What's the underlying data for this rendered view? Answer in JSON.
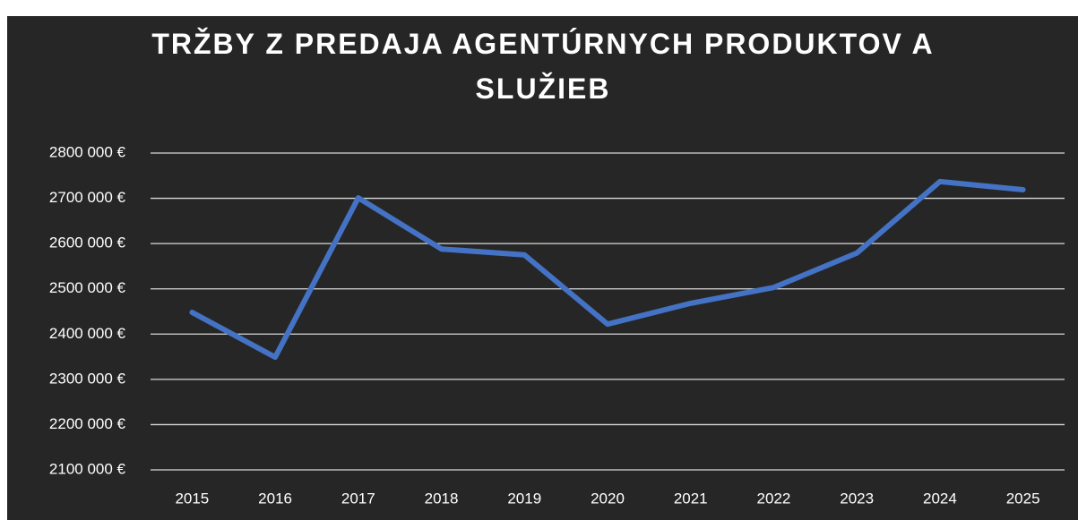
{
  "chart_data": {
    "type": "line",
    "title": "TRŽBY Z PREDAJA AGENTÚRNYCH PRODUKTOV A SLUŽIEB",
    "categories": [
      "2015",
      "2016",
      "2017",
      "2018",
      "2019",
      "2020",
      "2021",
      "2022",
      "2023",
      "2024",
      "2025"
    ],
    "series": [
      {
        "name": "Tržby",
        "color": "#4472c4",
        "values": [
          2448000,
          2349000,
          2701000,
          2588000,
          2575000,
          2422000,
          2468000,
          2503000,
          2579000,
          2737000,
          2719000
        ]
      }
    ],
    "ylim": [
      2100000,
      2800000
    ],
    "yticks": [
      {
        "value": 2100000,
        "label": "2100 000 €"
      },
      {
        "value": 2200000,
        "label": "2200 000 €"
      },
      {
        "value": 2300000,
        "label": "2300 000 €"
      },
      {
        "value": 2400000,
        "label": "2400 000 €"
      },
      {
        "value": 2500000,
        "label": "2500 000 €"
      },
      {
        "value": 2600000,
        "label": "2600 000 €"
      },
      {
        "value": 2700000,
        "label": "2700 000 €"
      },
      {
        "value": 2800000,
        "label": "2800 000 €"
      }
    ],
    "grid": true
  }
}
